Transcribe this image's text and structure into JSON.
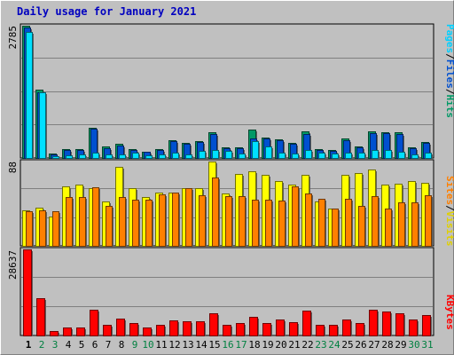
{
  "title": "Daily usage for January 2021",
  "colors": {
    "hits": "#009966",
    "files": "#0050d0",
    "pages": "#00e0ff",
    "visits": "#ffff00",
    "sites": "#ff8000",
    "kbytes": "#ff0000",
    "weekend_label": "#008040",
    "weekday_label": "#000000"
  },
  "chart_data": [
    {
      "type": "bar",
      "title": "Daily usage for January 2021",
      "ylabel_max": "2785",
      "ylim": [
        0,
        2785
      ],
      "grid": true,
      "legend": "right",
      "x": [
        1,
        2,
        3,
        4,
        5,
        6,
        7,
        8,
        9,
        10,
        11,
        12,
        13,
        14,
        15,
        16,
        17,
        18,
        19,
        20,
        21,
        22,
        23,
        24,
        25,
        26,
        27,
        28,
        29,
        30,
        31
      ],
      "series": [
        {
          "name": "Hits",
          "values": [
            2785,
            1430,
            90,
            190,
            190,
            640,
            240,
            290,
            180,
            140,
            180,
            370,
            320,
            350,
            540,
            230,
            230,
            590,
            430,
            390,
            310,
            560,
            180,
            160,
            410,
            240,
            560,
            540,
            550,
            230,
            340
          ]
        },
        {
          "name": "Files",
          "values": [
            2740,
            1390,
            75,
            160,
            170,
            610,
            210,
            260,
            165,
            125,
            170,
            355,
            300,
            330,
            500,
            210,
            210,
            420,
            410,
            370,
            290,
            510,
            170,
            145,
            380,
            220,
            530,
            520,
            510,
            210,
            320
          ]
        },
        {
          "name": "Pages",
          "values": [
            2650,
            1380,
            40,
            60,
            80,
            120,
            80,
            80,
            110,
            55,
            70,
            110,
            70,
            150,
            170,
            150,
            100,
            360,
            250,
            120,
            100,
            170,
            110,
            90,
            120,
            110,
            160,
            160,
            140,
            70,
            110
          ]
        }
      ]
    },
    {
      "type": "bar",
      "ylabel_max": "88",
      "ylim": [
        0,
        88
      ],
      "grid": true,
      "legend": "right",
      "x": [
        1,
        2,
        3,
        4,
        5,
        6,
        7,
        8,
        9,
        10,
        11,
        12,
        13,
        14,
        15,
        16,
        17,
        18,
        19,
        20,
        21,
        22,
        23,
        24,
        25,
        26,
        27,
        28,
        29,
        30,
        31
      ],
      "series": [
        {
          "name": "Visits",
          "values": [
            37,
            40,
            31,
            62,
            64,
            60,
            46,
            82,
            60,
            51,
            56,
            56,
            60,
            60,
            88,
            55,
            75,
            78,
            74,
            68,
            64,
            74,
            46,
            39,
            74,
            76,
            80,
            64,
            65,
            68,
            66
          ]
        },
        {
          "name": "Sites",
          "values": [
            36,
            37,
            36,
            51,
            51,
            61,
            42,
            51,
            48,
            48,
            54,
            56,
            60,
            53,
            71,
            52,
            52,
            48,
            48,
            47,
            62,
            55,
            49,
            39,
            49,
            42,
            52,
            39,
            45,
            45,
            53
          ]
        }
      ]
    },
    {
      "type": "bar",
      "ylabel_max": "28637",
      "ylim": [
        0,
        28637
      ],
      "grid": true,
      "legend": "right",
      "x": [
        1,
        2,
        3,
        4,
        5,
        6,
        7,
        8,
        9,
        10,
        11,
        12,
        13,
        14,
        15,
        16,
        17,
        18,
        19,
        20,
        21,
        22,
        23,
        24,
        25,
        26,
        27,
        28,
        29,
        30,
        31
      ],
      "series": [
        {
          "name": "KBytes",
          "values": [
            28637,
            12300,
            1600,
            2800,
            2700,
            8700,
            3500,
            5500,
            4000,
            2600,
            3500,
            4900,
            4800,
            4800,
            7400,
            3500,
            4200,
            6100,
            4000,
            5200,
            4400,
            8300,
            3400,
            3400,
            5400,
            4200,
            8600,
            8100,
            7300,
            5200,
            6900
          ]
        }
      ]
    }
  ],
  "legend_top": [
    "Pages",
    "/",
    "Files",
    "/",
    "Hits"
  ],
  "legend_middle": [
    "Sites",
    "/",
    "Visits"
  ],
  "legend_bottom": [
    "KBytes"
  ],
  "day_labels": [
    "1",
    "2",
    "3",
    "4",
    "5",
    "6",
    "7",
    "8",
    "9",
    "10",
    "11",
    "12",
    "13",
    "14",
    "15",
    "16",
    "17",
    "18",
    "19",
    "20",
    "21",
    "22",
    "23",
    "24",
    "25",
    "26",
    "27",
    "28",
    "29",
    "30",
    "31"
  ],
  "weekend_days": [
    2,
    3,
    9,
    10,
    16,
    17,
    23,
    24,
    30,
    31
  ],
  "highlight_day": 1
}
